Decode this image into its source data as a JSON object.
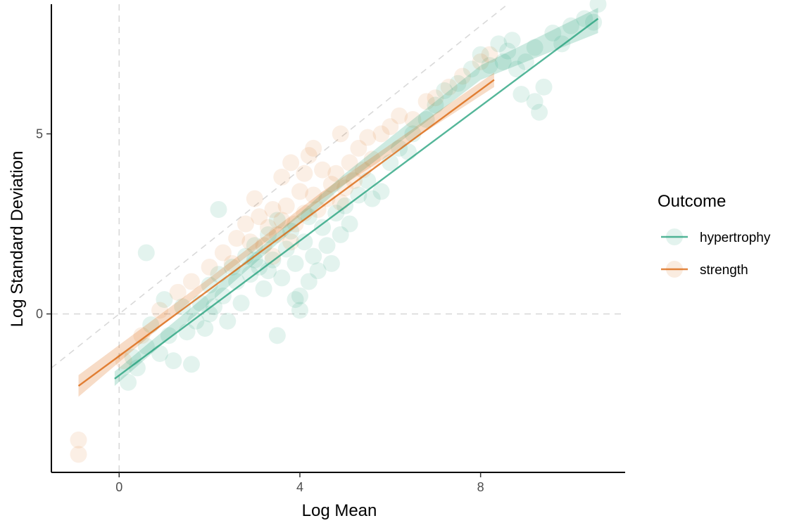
{
  "chart_data": {
    "type": "scatter",
    "title": "",
    "xlabel": "Log Mean",
    "ylabel": "Log Standard Deviation",
    "xlim": [
      -1.5,
      11.2
    ],
    "ylim": [
      -4.4,
      8.6
    ],
    "x_ticks": [
      0,
      4,
      8
    ],
    "x_tick_labels": [
      "0",
      "4",
      "8"
    ],
    "y_ticks": [
      0,
      5
    ],
    "y_tick_labels": [
      "0",
      "5"
    ],
    "grid": false,
    "reference_lines": [
      {
        "kind": "vertical",
        "x": 0,
        "style": "dashed",
        "color": "#d9d9d9"
      },
      {
        "kind": "horizontal",
        "y": 0,
        "style": "dashed",
        "color": "#d9d9d9"
      },
      {
        "kind": "identity",
        "slope": 1,
        "intercept": 0,
        "style": "dashed",
        "color": "#d9d9d9"
      }
    ],
    "legend": {
      "title": "Outcome",
      "placement": "right",
      "entries": [
        {
          "label": "hypertrophy",
          "color": "#1b9e77"
        },
        {
          "label": "strength",
          "color": "#d95f02"
        }
      ]
    },
    "series": [
      {
        "name": "hypertrophy",
        "color": "#1b9e77",
        "point_opacity": 0.12,
        "fit": {
          "x_start": -0.1,
          "x_end": 10.6,
          "y_start": -1.8,
          "y_end": 8.2
        },
        "band": {
          "upper": [
            [
              -0.1,
              -1.6
            ],
            [
              2.0,
              0.6
            ],
            [
              5.0,
              3.9
            ],
            [
              8.0,
              6.9
            ],
            [
              10.6,
              8.5
            ]
          ],
          "lower": [
            [
              -0.1,
              -2.0
            ],
            [
              2.0,
              0.3
            ],
            [
              5.0,
              3.6
            ],
            [
              8.0,
              6.5
            ],
            [
              10.6,
              7.8
            ]
          ]
        },
        "points": [
          [
            0.2,
            -1.9
          ],
          [
            0.4,
            -1.5
          ],
          [
            0.3,
            -1.2
          ],
          [
            0.6,
            -0.9
          ],
          [
            0.7,
            -0.3
          ],
          [
            0.9,
            -1.1
          ],
          [
            1.1,
            -0.6
          ],
          [
            1.2,
            -1.3
          ],
          [
            1.0,
            0.4
          ],
          [
            0.6,
            1.7
          ],
          [
            1.4,
            0.2
          ],
          [
            1.5,
            -0.5
          ],
          [
            1.6,
            -1.4
          ],
          [
            1.8,
            0.3
          ],
          [
            1.9,
            -0.4
          ],
          [
            2.0,
            0.8
          ],
          [
            2.1,
            0.2
          ],
          [
            2.2,
            1.1
          ],
          [
            2.3,
            0.5
          ],
          [
            2.4,
            -0.2
          ],
          [
            2.5,
            1.3
          ],
          [
            2.6,
            0.9
          ],
          [
            2.7,
            0.3
          ],
          [
            2.2,
            2.9
          ],
          [
            2.8,
            1.6
          ],
          [
            2.9,
            1.1
          ],
          [
            3.0,
            1.9
          ],
          [
            3.1,
            1.3
          ],
          [
            3.2,
            0.7
          ],
          [
            3.3,
            2.2
          ],
          [
            3.4,
            1.5
          ],
          [
            3.5,
            2.6
          ],
          [
            3.6,
            1.0
          ],
          [
            3.7,
            1.8
          ],
          [
            3.8,
            2.3
          ],
          [
            3.9,
            1.4
          ],
          [
            4.0,
            0.5
          ],
          [
            4.0,
            0.1
          ],
          [
            3.5,
            -0.6
          ],
          [
            4.1,
            2.0
          ],
          [
            4.2,
            2.7
          ],
          [
            4.3,
            1.6
          ],
          [
            4.4,
            1.2
          ],
          [
            4.5,
            2.4
          ],
          [
            4.6,
            1.9
          ],
          [
            4.7,
            1.4
          ],
          [
            4.8,
            2.8
          ],
          [
            4.9,
            2.2
          ],
          [
            5.0,
            3.0
          ],
          [
            5.1,
            2.5
          ],
          [
            5.3,
            3.3
          ],
          [
            5.5,
            3.7
          ],
          [
            5.8,
            3.4
          ],
          [
            6.0,
            4.2
          ],
          [
            6.2,
            4.6
          ],
          [
            6.5,
            5.0
          ],
          [
            6.8,
            5.4
          ],
          [
            7.0,
            5.8
          ],
          [
            7.2,
            6.2
          ],
          [
            7.5,
            6.4
          ],
          [
            7.8,
            6.8
          ],
          [
            8.0,
            7.2
          ],
          [
            8.2,
            6.9
          ],
          [
            8.4,
            7.5
          ],
          [
            8.5,
            7.0
          ],
          [
            8.6,
            7.3
          ],
          [
            8.7,
            7.6
          ],
          [
            8.8,
            6.8
          ],
          [
            9.0,
            7.0
          ],
          [
            9.2,
            7.4
          ],
          [
            9.4,
            6.3
          ],
          [
            9.2,
            5.9
          ],
          [
            9.3,
            5.6
          ],
          [
            8.9,
            6.1
          ],
          [
            9.6,
            7.8
          ],
          [
            9.8,
            7.5
          ],
          [
            10.0,
            8.0
          ],
          [
            10.3,
            8.2
          ],
          [
            10.6,
            8.6
          ],
          [
            10.5,
            8.1
          ],
          [
            3.9,
            0.4
          ],
          [
            4.2,
            0.9
          ],
          [
            3.0,
            1.5
          ],
          [
            3.3,
            1.2
          ],
          [
            2.0,
            0.0
          ],
          [
            1.7,
            -0.2
          ],
          [
            5.6,
            3.2
          ],
          [
            6.4,
            4.5
          ]
        ]
      },
      {
        "name": "strength",
        "color": "#d95f02",
        "point_opacity": 0.1,
        "fit": {
          "x_start": -0.9,
          "x_end": 8.3,
          "y_start": -2.0,
          "y_end": 6.5
        },
        "band": {
          "upper": [
            [
              -0.9,
              -1.7
            ],
            [
              2.0,
              1.0
            ],
            [
              4.5,
              3.4
            ],
            [
              8.3,
              6.7
            ]
          ],
          "lower": [
            [
              -0.9,
              -2.3
            ],
            [
              2.0,
              0.8
            ],
            [
              4.5,
              3.2
            ],
            [
              8.3,
              6.3
            ]
          ]
        },
        "points": [
          [
            -0.9,
            -3.9
          ],
          [
            -0.9,
            -3.5
          ],
          [
            0.1,
            -1.3
          ],
          [
            0.5,
            -0.6
          ],
          [
            0.9,
            0.1
          ],
          [
            1.3,
            0.6
          ],
          [
            1.6,
            0.9
          ],
          [
            2.0,
            1.3
          ],
          [
            2.3,
            1.7
          ],
          [
            2.6,
            2.1
          ],
          [
            2.8,
            2.5
          ],
          [
            3.0,
            3.2
          ],
          [
            3.1,
            2.7
          ],
          [
            3.2,
            1.9
          ],
          [
            3.3,
            2.4
          ],
          [
            3.4,
            2.9
          ],
          [
            3.5,
            2.2
          ],
          [
            3.6,
            2.6
          ],
          [
            3.7,
            3.0
          ],
          [
            3.8,
            2.0
          ],
          [
            3.9,
            2.5
          ],
          [
            4.0,
            3.4
          ],
          [
            4.1,
            2.8
          ],
          [
            4.2,
            4.4
          ],
          [
            4.3,
            3.3
          ],
          [
            4.4,
            2.9
          ],
          [
            4.5,
            4.0
          ],
          [
            4.6,
            3.2
          ],
          [
            4.7,
            3.6
          ],
          [
            4.8,
            3.9
          ],
          [
            4.9,
            3.1
          ],
          [
            5.0,
            3.5
          ],
          [
            5.1,
            4.2
          ],
          [
            5.2,
            3.7
          ],
          [
            5.3,
            4.6
          ],
          [
            5.4,
            4.0
          ],
          [
            5.5,
            4.9
          ],
          [
            5.6,
            4.3
          ],
          [
            5.8,
            5.0
          ],
          [
            6.0,
            5.2
          ],
          [
            6.2,
            5.5
          ],
          [
            6.5,
            5.4
          ],
          [
            6.8,
            5.9
          ],
          [
            7.0,
            6.0
          ],
          [
            7.3,
            6.3
          ],
          [
            7.6,
            6.6
          ],
          [
            8.0,
            7.0
          ],
          [
            8.2,
            7.2
          ],
          [
            4.9,
            5.0
          ],
          [
            4.3,
            4.6
          ],
          [
            3.8,
            4.2
          ],
          [
            4.1,
            3.9
          ],
          [
            3.6,
            3.8
          ],
          [
            2.9,
            2.0
          ],
          [
            3.4,
            1.6
          ],
          [
            2.5,
            1.4
          ]
        ]
      }
    ]
  }
}
